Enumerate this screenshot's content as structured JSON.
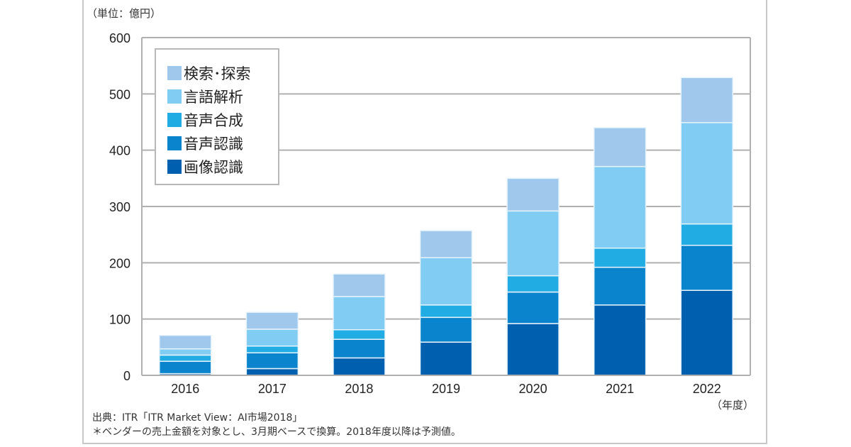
{
  "unit_label": "（単位：億円）",
  "x_unit_label": "（年度）",
  "footer": {
    "source": "出典：ITR「ITR Market View：AI市場2018」",
    "note": "＊ベンダーの売上金額を対象とし、3月期ベースで換算。2018年度以降は予測値。"
  },
  "legend": [
    {
      "label": "検索･探索",
      "color": "#a0c8ec"
    },
    {
      "label": "言語解析",
      "color": "#80ccf2"
    },
    {
      "label": "音声合成",
      "color": "#22ace4"
    },
    {
      "label": "音声認識",
      "color": "#0a84cc"
    },
    {
      "label": "画像認識",
      "color": "#0060b0"
    }
  ],
  "chart_data": {
    "type": "bar",
    "stacked": true,
    "title": "",
    "xlabel": "（年度）",
    "ylabel": "（単位：億円）",
    "ylim": [
      0,
      600
    ],
    "yticks": [
      0,
      100,
      200,
      300,
      400,
      500,
      600
    ],
    "grid": true,
    "legend_position": "top-left",
    "categories": [
      "2016",
      "2017",
      "2018",
      "2019",
      "2020",
      "2021",
      "2022"
    ],
    "series": [
      {
        "name": "画像認識",
        "color": "#0060b0",
        "values": [
          3,
          12,
          31,
          59,
          92,
          125,
          151
        ]
      },
      {
        "name": "音声認識",
        "color": "#0a84cc",
        "values": [
          22,
          28,
          33,
          44,
          56,
          67,
          80
        ]
      },
      {
        "name": "音声合成",
        "color": "#22ace4",
        "values": [
          11,
          12,
          17,
          22,
          29,
          34,
          38
        ]
      },
      {
        "name": "言語解析",
        "color": "#80ccf2",
        "values": [
          11,
          30,
          59,
          84,
          115,
          145,
          180
        ]
      },
      {
        "name": "検索･探索",
        "color": "#a0c8ec",
        "values": [
          24,
          30,
          40,
          48,
          58,
          69,
          80
        ]
      }
    ]
  }
}
